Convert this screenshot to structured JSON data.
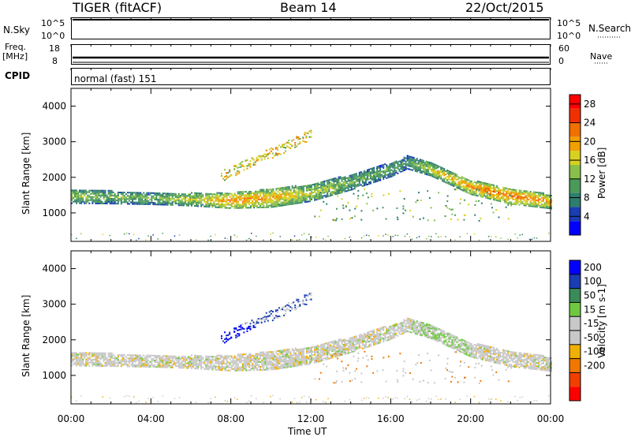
{
  "header": {
    "radar": "TIGER (fitACF)",
    "beam": "Beam 14",
    "date": "22/Oct/2015"
  },
  "nsky": {
    "label": "N.Sky",
    "ticks": [
      "10^5",
      "10^0"
    ],
    "right_label": "N.Search",
    "right_ticks": [
      "10^5",
      "10^0"
    ]
  },
  "freq": {
    "label": "Freq.",
    "unit": "[MHz]",
    "ticks": [
      "18",
      "8"
    ],
    "right_label": "Nave",
    "right_ticks": [
      "60",
      "0"
    ]
  },
  "cpid": {
    "label": "CPID",
    "value": "normal (fast) 151"
  },
  "colors": {
    "power_scale": [
      "#0000ff",
      "#1a3db3",
      "#2e7d6e",
      "#4a9a5a",
      "#8ac04a",
      "#d8d020",
      "#f0a000",
      "#f07000",
      "#f03000",
      "#ff0000"
    ],
    "velocity_scale": [
      "#0000ff",
      "#1a3db3",
      "#3a8a5a",
      "#70c840",
      "#c8c8c8",
      "#c8c8c8",
      "#f0b000",
      "#f07800",
      "#f04000",
      "#ff0000"
    ]
  },
  "chart_data": [
    {
      "type": "heatmap",
      "name": "power-panel",
      "ylabel": "Slant Range [km]",
      "xlim": [
        0,
        24
      ],
      "ylim": [
        200,
        4500
      ],
      "y_ticks": [
        "1000",
        "2000",
        "3000",
        "4000"
      ],
      "y_tick_values": [
        1000,
        2000,
        3000,
        4000
      ],
      "colorbar": {
        "label": "Power [dB]",
        "ticks": [
          "4",
          "8",
          "12",
          "16",
          "20",
          "24",
          "28"
        ],
        "range": [
          0,
          30
        ]
      },
      "echo_bands": [
        {
          "t": [
            0,
            2,
            4,
            6,
            8,
            10,
            12,
            14,
            16,
            16.8,
            18,
            20,
            22,
            24
          ],
          "center": [
            1450,
            1420,
            1390,
            1360,
            1330,
            1400,
            1550,
            1850,
            2200,
            2400,
            2200,
            1700,
            1450,
            1300
          ],
          "width": [
            200,
            180,
            170,
            180,
            220,
            260,
            240,
            220,
            200,
            180,
            180,
            200,
            220,
            200
          ],
          "power": [
            14,
            13,
            12,
            16,
            22,
            20,
            16,
            12,
            11,
            11,
            16,
            22,
            24,
            20
          ]
        }
      ]
    },
    {
      "type": "heatmap",
      "name": "velocity-panel",
      "xlabel": "Time UT",
      "ylabel": "Slant Range [km]",
      "xlim": [
        0,
        24
      ],
      "ylim": [
        200,
        4500
      ],
      "x_ticks": [
        "00:00",
        "04:00",
        "08:00",
        "12:00",
        "16:00",
        "20:00",
        "00:00"
      ],
      "x_tick_values": [
        0,
        4,
        8,
        12,
        16,
        20,
        24
      ],
      "y_ticks": [
        "1000",
        "2000",
        "3000",
        "4000"
      ],
      "y_tick_values": [
        1000,
        2000,
        3000,
        4000
      ],
      "colorbar": {
        "label": "Velocity [m s-1]",
        "ticks": [
          "200",
          "100",
          "50",
          "15",
          "-15",
          "-50",
          "-100",
          "-200"
        ]
      }
    }
  ]
}
